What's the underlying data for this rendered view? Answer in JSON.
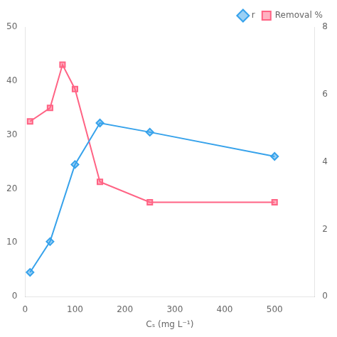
{
  "chart_data": {
    "type": "line",
    "xlabel": "Cₛ (mg L⁻¹)",
    "series": [
      {
        "name": "r",
        "x": [
          10,
          50,
          100,
          150,
          250,
          500
        ],
        "values": [
          4.5,
          10.2,
          24.5,
          32.2,
          30.5,
          26.0
        ],
        "marker": "diamond"
      },
      {
        "name": "Removal %",
        "x": [
          10,
          50,
          75,
          100,
          150,
          250,
          500
        ],
        "values": [
          32.5,
          35.0,
          43.0,
          38.5,
          21.3,
          17.5,
          17.5
        ],
        "marker": "square"
      }
    ],
    "xlim": [
      0,
      580
    ],
    "xticks": [
      0,
      100,
      200,
      300,
      400,
      500
    ],
    "ylim": [
      0,
      50
    ],
    "yticks": [
      0,
      10,
      20,
      30,
      40,
      50
    ],
    "y2lim": [
      0,
      8
    ],
    "y2ticks": [
      0,
      2,
      4,
      6,
      8
    ],
    "legend": "upper right",
    "grid": false
  }
}
